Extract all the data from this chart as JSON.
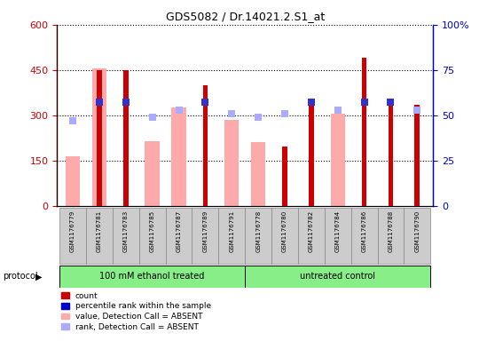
{
  "title": "GDS5082 / Dr.14021.2.S1_at",
  "samples": [
    "GSM1176779",
    "GSM1176781",
    "GSM1176783",
    "GSM1176785",
    "GSM1176787",
    "GSM1176789",
    "GSM1176791",
    "GSM1176778",
    "GSM1176780",
    "GSM1176782",
    "GSM1176784",
    "GSM1176786",
    "GSM1176788",
    "GSM1176790"
  ],
  "red_bars_val": [
    0,
    450,
    450,
    0,
    0,
    400,
    0,
    0,
    195,
    335,
    0,
    490,
    335,
    335
  ],
  "pink_bars_val": [
    165,
    455,
    0,
    215,
    325,
    0,
    285,
    210,
    0,
    0,
    305,
    0,
    0,
    0
  ],
  "blue_pct": [
    0,
    57,
    57,
    0,
    0,
    57,
    0,
    0,
    0,
    57,
    0,
    57,
    57,
    0
  ],
  "lightblue_pct": [
    47,
    0,
    0,
    49,
    53,
    0,
    51,
    49,
    51,
    0,
    53,
    0,
    0,
    53
  ],
  "group1_count": 7,
  "group2_count": 7,
  "group1_label": "100 mM ethanol treated",
  "group2_label": "untreated control",
  "protocol_label": "protocol",
  "ylim_left": [
    0,
    600
  ],
  "ylim_right": [
    0,
    100
  ],
  "yticks_left": [
    0,
    150,
    300,
    450,
    600
  ],
  "yticks_right": [
    0,
    25,
    50,
    75,
    100
  ],
  "ylabel_left_color": "#cc0000",
  "ylabel_right_color": "#0000cc",
  "legend_items": [
    "count",
    "percentile rank within the sample",
    "value, Detection Call = ABSENT",
    "rank, Detection Call = ABSENT"
  ],
  "legend_colors": [
    "#cc0000",
    "#0000cc",
    "#ffaaaa",
    "#aaaaff"
  ],
  "background_color": "#ffffff",
  "group_bg_color": "#88ee88",
  "ticklabel_bg": "#cccccc",
  "red_bar_width": 0.35,
  "pink_bar_width": 0.55,
  "marker_size": 40
}
